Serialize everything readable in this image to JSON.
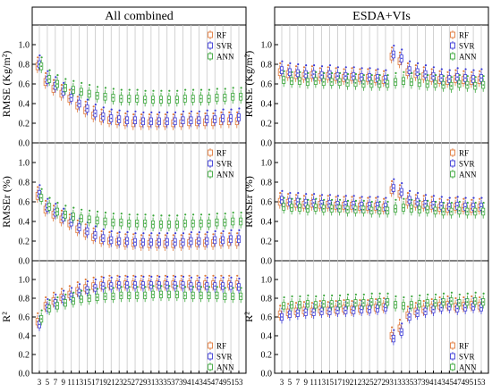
{
  "figure": {
    "panels": [
      "All combined",
      "ESDA+VIs"
    ],
    "x_ticks": [
      3,
      5,
      7,
      9,
      11,
      13,
      15,
      17,
      19,
      21,
      23,
      25,
      27,
      29,
      31,
      33,
      35,
      37,
      39,
      41,
      43,
      45,
      47,
      49,
      51,
      53
    ],
    "y_ticks": [
      "0.0",
      "0.2",
      "0.4",
      "0.6",
      "0.8",
      "1.0"
    ],
    "row_labels": [
      {
        "left": "RMSE (Kg/m²)",
        "right": "RMSE (Kg/m²)"
      },
      {
        "left": "RMSEr (%)",
        "right": "RMSEr (%)"
      },
      {
        "left": "R²",
        "right": "R²"
      }
    ],
    "legend": [
      "RF",
      "SVR",
      "ANN"
    ],
    "colors": {
      "RF": "#e07a3c",
      "SVR": "#3b3bd6",
      "ANN": "#3aa63a"
    }
  },
  "chart_data": [
    {
      "type": "box",
      "title": "All combined",
      "ylabel": "RMSE (Kg/m²)",
      "ylim": [
        0,
        1.2
      ],
      "x": [
        3,
        5,
        7,
        9,
        11,
        13,
        15,
        17,
        19,
        21,
        23,
        25,
        27,
        29,
        31,
        33,
        35,
        37,
        39,
        41,
        43,
        45,
        47,
        49,
        51,
        53
      ],
      "series": [
        {
          "name": "RF",
          "values": [
            0.78,
            0.62,
            0.55,
            0.5,
            0.45,
            0.38,
            0.33,
            0.28,
            0.25,
            0.23,
            0.22,
            0.21,
            0.2,
            0.2,
            0.2,
            0.2,
            0.2,
            0.2,
            0.2,
            0.21,
            0.21,
            0.21,
            0.21,
            0.22,
            0.22,
            0.22
          ]
        },
        {
          "name": "SVR",
          "values": [
            0.8,
            0.64,
            0.58,
            0.52,
            0.46,
            0.4,
            0.35,
            0.3,
            0.27,
            0.25,
            0.24,
            0.23,
            0.23,
            0.22,
            0.22,
            0.22,
            0.22,
            0.22,
            0.23,
            0.23,
            0.23,
            0.24,
            0.24,
            0.25,
            0.25,
            0.26
          ]
        },
        {
          "name": "ANN",
          "values": [
            0.78,
            0.65,
            0.6,
            0.56,
            0.54,
            0.52,
            0.5,
            0.48,
            0.47,
            0.46,
            0.45,
            0.45,
            0.45,
            0.44,
            0.44,
            0.44,
            0.44,
            0.44,
            0.45,
            0.45,
            0.45,
            0.45,
            0.46,
            0.46,
            0.47,
            0.47
          ]
        }
      ]
    },
    {
      "type": "box",
      "title": "ESDA+VIs",
      "ylabel": "RMSE (Kg/m²)",
      "ylim": [
        0,
        1.2
      ],
      "x": [
        3,
        5,
        7,
        9,
        11,
        13,
        15,
        17,
        19,
        21,
        23,
        25,
        27,
        29,
        31,
        33,
        35,
        37,
        39,
        41,
        43,
        45,
        47,
        49,
        51,
        53
      ],
      "series": [
        {
          "name": "RF",
          "values": [
            0.72,
            0.7,
            0.69,
            0.68,
            0.69,
            0.67,
            0.68,
            0.67,
            0.66,
            0.67,
            0.66,
            0.66,
            0.65,
            0.64,
            0.88,
            0.83,
            0.72,
            0.7,
            0.68,
            0.66,
            0.64,
            0.63,
            0.65,
            0.64,
            0.63,
            0.64
          ]
        },
        {
          "name": "SVR",
          "values": [
            0.74,
            0.72,
            0.71,
            0.7,
            0.7,
            0.69,
            0.7,
            0.68,
            0.68,
            0.68,
            0.67,
            0.67,
            0.66,
            0.65,
            0.9,
            0.86,
            0.74,
            0.72,
            0.7,
            0.68,
            0.66,
            0.65,
            0.67,
            0.66,
            0.65,
            0.66
          ]
        },
        {
          "name": "ANN",
          "values": [
            0.64,
            0.63,
            0.63,
            0.62,
            0.63,
            0.62,
            0.62,
            0.62,
            0.61,
            0.61,
            0.6,
            0.6,
            0.6,
            0.6,
            0.62,
            0.63,
            0.62,
            0.61,
            0.6,
            0.6,
            0.59,
            0.58,
            0.6,
            0.59,
            0.58,
            0.59
          ]
        }
      ]
    },
    {
      "type": "box",
      "title": "",
      "ylabel": "RMSEr (%)",
      "ylim": [
        0,
        1.2
      ],
      "x": [
        3,
        5,
        7,
        9,
        11,
        13,
        15,
        17,
        19,
        21,
        23,
        25,
        27,
        29,
        31,
        33,
        35,
        37,
        39,
        41,
        43,
        45,
        47,
        49,
        51,
        53
      ],
      "series": [
        {
          "name": "RF",
          "values": [
            0.66,
            0.52,
            0.47,
            0.42,
            0.38,
            0.32,
            0.28,
            0.24,
            0.21,
            0.2,
            0.19,
            0.18,
            0.18,
            0.17,
            0.17,
            0.17,
            0.17,
            0.17,
            0.17,
            0.18,
            0.18,
            0.18,
            0.18,
            0.19,
            0.19,
            0.19
          ]
        },
        {
          "name": "SVR",
          "values": [
            0.68,
            0.54,
            0.49,
            0.44,
            0.39,
            0.34,
            0.3,
            0.26,
            0.23,
            0.21,
            0.2,
            0.2,
            0.19,
            0.19,
            0.19,
            0.19,
            0.19,
            0.19,
            0.19,
            0.2,
            0.2,
            0.2,
            0.21,
            0.21,
            0.22,
            0.22
          ]
        },
        {
          "name": "ANN",
          "values": [
            0.64,
            0.55,
            0.5,
            0.47,
            0.45,
            0.43,
            0.42,
            0.41,
            0.4,
            0.39,
            0.39,
            0.38,
            0.38,
            0.38,
            0.37,
            0.37,
            0.37,
            0.37,
            0.38,
            0.38,
            0.38,
            0.38,
            0.39,
            0.39,
            0.4,
            0.4
          ]
        }
      ]
    },
    {
      "type": "box",
      "title": "",
      "ylabel": "RMSEr (%)",
      "ylim": [
        0,
        1.2
      ],
      "x": [
        3,
        5,
        7,
        9,
        11,
        13,
        15,
        17,
        19,
        21,
        23,
        25,
        27,
        29,
        31,
        33,
        35,
        37,
        39,
        41,
        43,
        45,
        47,
        49,
        51,
        53
      ],
      "series": [
        {
          "name": "RF",
          "values": [
            0.6,
            0.59,
            0.58,
            0.57,
            0.58,
            0.57,
            0.57,
            0.56,
            0.56,
            0.56,
            0.55,
            0.55,
            0.55,
            0.54,
            0.72,
            0.68,
            0.6,
            0.58,
            0.57,
            0.56,
            0.54,
            0.53,
            0.55,
            0.54,
            0.53,
            0.54
          ]
        },
        {
          "name": "SVR",
          "values": [
            0.62,
            0.6,
            0.6,
            0.59,
            0.59,
            0.58,
            0.58,
            0.57,
            0.57,
            0.57,
            0.56,
            0.56,
            0.56,
            0.55,
            0.74,
            0.7,
            0.62,
            0.6,
            0.58,
            0.57,
            0.56,
            0.55,
            0.56,
            0.55,
            0.55,
            0.55
          ]
        },
        {
          "name": "ANN",
          "values": [
            0.55,
            0.54,
            0.54,
            0.53,
            0.54,
            0.53,
            0.53,
            0.53,
            0.52,
            0.52,
            0.52,
            0.51,
            0.51,
            0.51,
            0.53,
            0.54,
            0.53,
            0.52,
            0.52,
            0.51,
            0.5,
            0.5,
            0.51,
            0.5,
            0.5,
            0.5
          ]
        }
      ]
    },
    {
      "type": "box",
      "title": "",
      "ylabel": "R²",
      "ylim": [
        0,
        1.2
      ],
      "x": [
        3,
        5,
        7,
        9,
        11,
        13,
        15,
        17,
        19,
        21,
        23,
        25,
        27,
        29,
        31,
        33,
        35,
        37,
        39,
        41,
        43,
        45,
        47,
        49,
        51,
        53
      ],
      "series": [
        {
          "name": "RF",
          "values": [
            0.55,
            0.72,
            0.77,
            0.81,
            0.84,
            0.88,
            0.91,
            0.93,
            0.94,
            0.95,
            0.95,
            0.95,
            0.95,
            0.95,
            0.95,
            0.95,
            0.95,
            0.95,
            0.95,
            0.95,
            0.95,
            0.95,
            0.95,
            0.95,
            0.95,
            0.95
          ]
        },
        {
          "name": "SVR",
          "values": [
            0.52,
            0.7,
            0.75,
            0.79,
            0.82,
            0.86,
            0.89,
            0.91,
            0.93,
            0.93,
            0.94,
            0.94,
            0.94,
            0.94,
            0.94,
            0.94,
            0.94,
            0.94,
            0.94,
            0.93,
            0.93,
            0.93,
            0.93,
            0.93,
            0.93,
            0.92
          ]
        },
        {
          "name": "ANN",
          "values": [
            0.58,
            0.69,
            0.72,
            0.75,
            0.77,
            0.79,
            0.8,
            0.81,
            0.82,
            0.82,
            0.83,
            0.83,
            0.83,
            0.83,
            0.84,
            0.84,
            0.84,
            0.84,
            0.83,
            0.83,
            0.83,
            0.83,
            0.83,
            0.82,
            0.82,
            0.82
          ]
        }
      ]
    },
    {
      "type": "box",
      "title": "",
      "ylabel": "R²",
      "ylim": [
        0,
        1.2
      ],
      "x": [
        3,
        5,
        7,
        9,
        11,
        13,
        15,
        17,
        19,
        21,
        23,
        25,
        27,
        29,
        31,
        33,
        35,
        37,
        39,
        41,
        43,
        45,
        47,
        49,
        51,
        53
      ],
      "series": [
        {
          "name": "RF",
          "values": [
            0.63,
            0.65,
            0.66,
            0.67,
            0.66,
            0.68,
            0.67,
            0.68,
            0.69,
            0.68,
            0.69,
            0.69,
            0.7,
            0.71,
            0.4,
            0.48,
            0.62,
            0.66,
            0.68,
            0.7,
            0.72,
            0.73,
            0.71,
            0.72,
            0.73,
            0.72
          ]
        },
        {
          "name": "SVR",
          "values": [
            0.6,
            0.63,
            0.64,
            0.65,
            0.65,
            0.66,
            0.66,
            0.67,
            0.67,
            0.67,
            0.68,
            0.68,
            0.69,
            0.7,
            0.37,
            0.44,
            0.6,
            0.64,
            0.66,
            0.68,
            0.7,
            0.71,
            0.69,
            0.7,
            0.71,
            0.7
          ]
        },
        {
          "name": "ANN",
          "values": [
            0.72,
            0.73,
            0.73,
            0.74,
            0.73,
            0.74,
            0.74,
            0.74,
            0.75,
            0.75,
            0.75,
            0.76,
            0.76,
            0.76,
            0.73,
            0.72,
            0.73,
            0.74,
            0.75,
            0.75,
            0.76,
            0.77,
            0.75,
            0.76,
            0.77,
            0.76
          ]
        }
      ]
    }
  ]
}
